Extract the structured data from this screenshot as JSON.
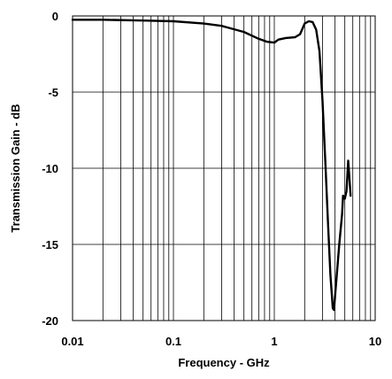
{
  "chart_data": {
    "type": "line",
    "title": "",
    "xlabel": "Frequency - GHz",
    "ylabel": "Transmission Gain - dB",
    "xscale": "log",
    "xlim": [
      0.01,
      10
    ],
    "ylim": [
      -20,
      0
    ],
    "x_ticks": [
      "0.01",
      "0.1",
      "1",
      "10"
    ],
    "y_ticks": [
      "0",
      "-5",
      "-10",
      "-15",
      "-20"
    ],
    "grid": true,
    "legend": "none",
    "series": [
      {
        "color": "#000000",
        "points": [
          [
            0.01,
            -0.25
          ],
          [
            0.02,
            -0.25
          ],
          [
            0.05,
            -0.3
          ],
          [
            0.1,
            -0.35
          ],
          [
            0.2,
            -0.5
          ],
          [
            0.3,
            -0.65
          ],
          [
            0.5,
            -1.05
          ],
          [
            0.7,
            -1.5
          ],
          [
            0.85,
            -1.7
          ],
          [
            1.0,
            -1.75
          ],
          [
            1.1,
            -1.55
          ],
          [
            1.3,
            -1.45
          ],
          [
            1.6,
            -1.4
          ],
          [
            1.8,
            -1.2
          ],
          [
            2.0,
            -0.5
          ],
          [
            2.2,
            -0.35
          ],
          [
            2.4,
            -0.4
          ],
          [
            2.6,
            -0.9
          ],
          [
            2.8,
            -2.3
          ],
          [
            3.0,
            -5.5
          ],
          [
            3.2,
            -9.5
          ],
          [
            3.4,
            -13.5
          ],
          [
            3.6,
            -17.0
          ],
          [
            3.8,
            -19.2
          ],
          [
            3.9,
            -19.3
          ],
          [
            4.1,
            -17.5
          ],
          [
            4.4,
            -15.0
          ],
          [
            4.7,
            -13.0
          ],
          [
            4.8,
            -11.8
          ],
          [
            5.0,
            -12.0
          ],
          [
            5.2,
            -11.5
          ],
          [
            5.4,
            -9.5
          ],
          [
            5.6,
            -11.0
          ],
          [
            5.7,
            -11.8
          ]
        ]
      }
    ]
  }
}
